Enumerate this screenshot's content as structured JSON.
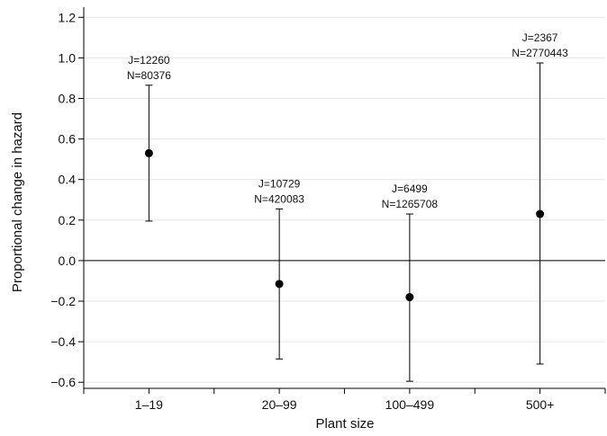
{
  "chart_data": {
    "type": "scatter",
    "xlabel": "Plant size",
    "ylabel": "Proportional change in hazard",
    "ylim": [
      -0.63,
      1.25
    ],
    "yticks": [
      -0.6,
      -0.4,
      -0.2,
      0.0,
      0.2,
      0.4,
      0.6,
      0.8,
      1.0,
      1.2
    ],
    "ytick_labels": [
      "−0.6",
      "−0.4",
      "−0.2",
      "0.0",
      "0.2",
      "0.4",
      "0.6",
      "0.8",
      "1.0",
      "1.2"
    ],
    "categories": [
      "1–19",
      "20–99",
      "100–499",
      "500+"
    ],
    "points": [
      {
        "category": "1–19",
        "estimate": 0.53,
        "lower": 0.195,
        "upper": 0.865,
        "label_j": "J=12260",
        "label_n": "N=80376"
      },
      {
        "category": "20–99",
        "estimate": -0.115,
        "lower": -0.485,
        "upper": 0.255,
        "label_j": "J=10729",
        "label_n": "N=420083"
      },
      {
        "category": "100–499",
        "estimate": -0.18,
        "lower": -0.595,
        "upper": 0.23,
        "label_j": "J=6499",
        "label_n": "N=1265708"
      },
      {
        "category": "500+",
        "estimate": 0.23,
        "lower": -0.51,
        "upper": 0.975,
        "label_j": "J=2367",
        "label_n": "N=2770443"
      }
    ],
    "reference_line": 0.0,
    "grid": "horizontal",
    "legend": "none"
  }
}
